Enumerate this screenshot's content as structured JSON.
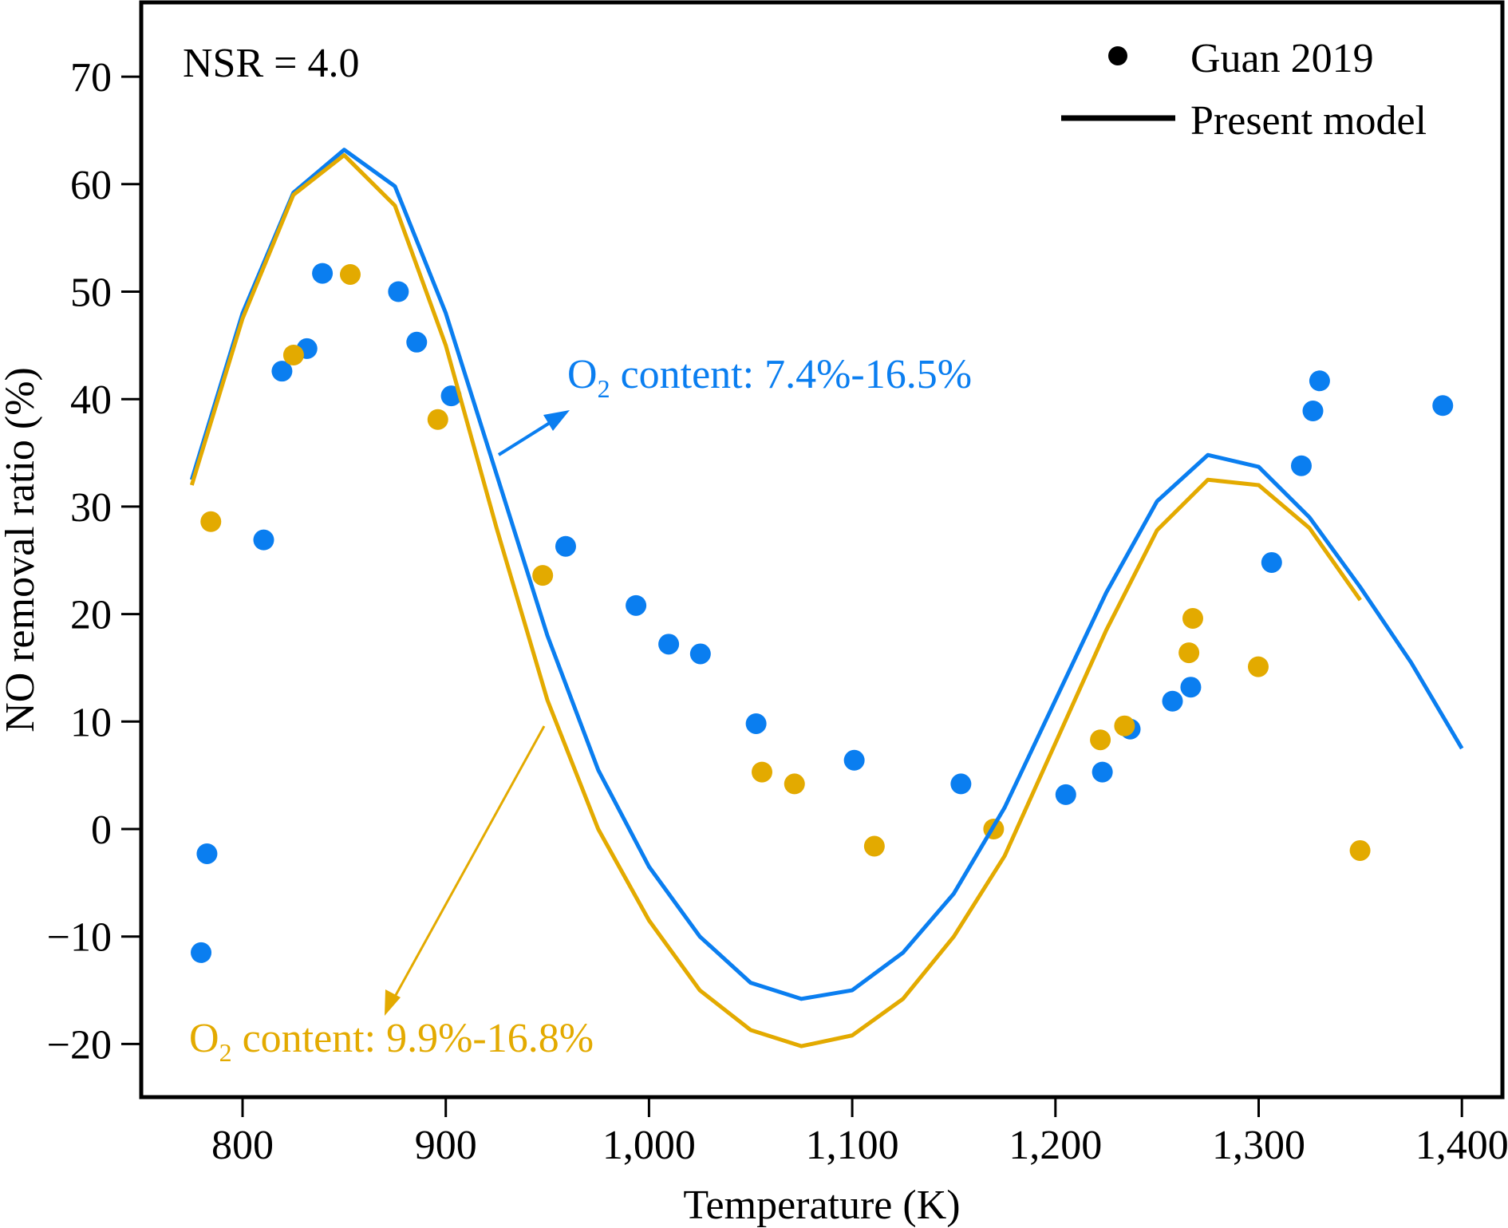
{
  "chart_data": {
    "type": "scatter+line",
    "xlabel": "Temperature (K)",
    "ylabel": "NO removal ratio (%)",
    "xlim": [
      750,
      1405
    ],
    "ylim": [
      -25,
      77
    ],
    "xticks": [
      800,
      900,
      1000,
      1100,
      1200,
      1300,
      1400
    ],
    "xtick_labels": [
      "800",
      "900",
      "1,000",
      "1,100",
      "1,200",
      "1,300",
      "1,400"
    ],
    "yticks": [
      70,
      60,
      50,
      40,
      30,
      20,
      10,
      0,
      -10,
      -20
    ],
    "ytick_labels": [
      "70",
      "60",
      "50",
      "40",
      "30",
      "20",
      "10",
      "0",
      "−10",
      "−20"
    ],
    "grid": false,
    "legend": {
      "placement": "top-right",
      "items": [
        {
          "label": "Guan 2019",
          "marker": "dot"
        },
        {
          "label": "Present model",
          "marker": "line"
        }
      ]
    },
    "annotations": {
      "nsr": "NSR = 4.0",
      "blue": {
        "prefix": "O",
        "subscript": "2",
        "text": " content: 7.4%-16.5%"
      },
      "orange": {
        "prefix": "O",
        "subscript": "2",
        "text": " content: 9.9%-16.8%"
      }
    },
    "colors": {
      "blue": "#0a7ef0",
      "orange": "#e3aa00",
      "axis": "#000000"
    },
    "series": [
      {
        "group": "blue",
        "kind": "line",
        "x": [
          775,
          800,
          825,
          850,
          875,
          900,
          925,
          950,
          975,
          1000,
          1025,
          1050,
          1075,
          1100,
          1125,
          1150,
          1175,
          1200,
          1225,
          1250,
          1275,
          1300,
          1325,
          1350,
          1375,
          1400
        ],
        "y": [
          32.5,
          48,
          59.2,
          63.2,
          59.8,
          48,
          33,
          18,
          5.5,
          -3.5,
          -10,
          -14.3,
          -15.8,
          -15,
          -11.5,
          -6,
          2,
          12,
          22,
          30.5,
          34.8,
          33.7,
          29,
          22.5,
          15.5,
          7.5
        ]
      },
      {
        "group": "orange",
        "kind": "line",
        "x": [
          775,
          800,
          825,
          850,
          875,
          900,
          925,
          950,
          975,
          1000,
          1025,
          1050,
          1075,
          1100,
          1125,
          1150,
          1175,
          1200,
          1225,
          1250,
          1275,
          1300,
          1325,
          1350
        ],
        "y": [
          32,
          47.5,
          59,
          62.7,
          58,
          45,
          28,
          12,
          0,
          -8.5,
          -15,
          -18.7,
          -20.2,
          -19.2,
          -15.8,
          -10,
          -2.5,
          8,
          18.5,
          27.8,
          32.5,
          32,
          28,
          21.3
        ]
      },
      {
        "group": "blue",
        "kind": "scatter",
        "x": [
          779.6,
          782.5,
          810.4,
          819.4,
          831.7,
          839.3,
          876.7,
          885.7,
          902.7,
          959,
          993.6,
          1009.7,
          1025.3,
          1052.7,
          1101,
          1153.5,
          1205.1,
          1223.1,
          1236.8,
          1257.6,
          1266.6,
          1306.4,
          1321,
          1326.7,
          1330,
          1390.6
        ],
        "y": [
          -11.5,
          -2.3,
          26.9,
          42.6,
          44.7,
          51.7,
          50.0,
          45.3,
          40.3,
          26.3,
          20.8,
          17.2,
          16.3,
          9.8,
          6.4,
          4.2,
          3.2,
          5.3,
          9.3,
          11.9,
          13.2,
          24.8,
          33.8,
          38.9,
          41.7,
          39.4
        ]
      },
      {
        "group": "orange",
        "kind": "scatter",
        "x": [
          784.4,
          825.1,
          853,
          896.1,
          947.7,
          1055.6,
          1071.6,
          1110.9,
          1169.6,
          1222.1,
          1234,
          1265.7,
          1267.6,
          1299.8,
          1349.9
        ],
        "y": [
          28.6,
          44.1,
          51.6,
          38.1,
          23.6,
          5.3,
          4.2,
          -1.6,
          0,
          8.3,
          9.6,
          16.4,
          19.6,
          15.1,
          -2.0
        ]
      }
    ]
  }
}
